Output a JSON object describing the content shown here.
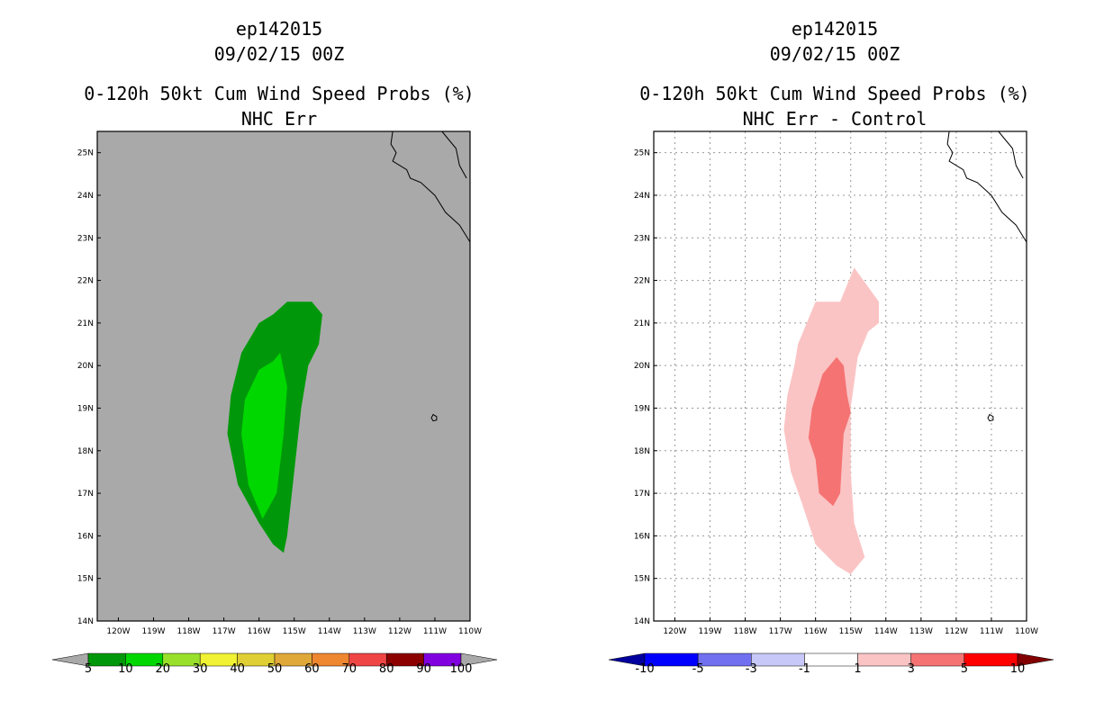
{
  "chart_data": [
    {
      "type": "heatmap",
      "storm": "ep142015",
      "date": "09/02/15 00Z",
      "title": "0-120h 50kt Cum Wind Speed Probs (%)",
      "subtitle": "NHC Err",
      "xlim": [
        -120.6,
        -110
      ],
      "ylim": [
        14,
        25.5
      ],
      "xticks": [
        "120W",
        "119W",
        "118W",
        "117W",
        "116W",
        "115W",
        "114W",
        "113W",
        "112W",
        "111W",
        "110W"
      ],
      "yticks": [
        "14N",
        "15N",
        "16N",
        "17N",
        "18N",
        "19N",
        "20N",
        "21N",
        "22N",
        "23N",
        "24N",
        "25N"
      ],
      "grid": false,
      "background": "#a9a9a9",
      "colorbar": {
        "labels": [
          "5",
          "10",
          "20",
          "30",
          "40",
          "50",
          "60",
          "70",
          "80",
          "90",
          "100"
        ],
        "colors": [
          "#00980a",
          "#00d700",
          "#99e02b",
          "#f0f233",
          "#e0cf34",
          "#e0a838",
          "#ef8630",
          "#f04545",
          "#8c0000",
          "#8100e0"
        ],
        "end_colors": [
          "#a9a9a9",
          "#a9a9a9"
        ]
      },
      "contours": [
        {
          "level": "5-10",
          "color": "#00980a",
          "polygon": [
            [
              -115.6,
              21.2
            ],
            [
              -115.2,
              21.5
            ],
            [
              -114.5,
              21.5
            ],
            [
              -114.2,
              21.2
            ],
            [
              -114.3,
              20.5
            ],
            [
              -114.6,
              20
            ],
            [
              -114.8,
              19
            ],
            [
              -115,
              17.5
            ],
            [
              -115.2,
              16
            ],
            [
              -115.3,
              15.6
            ],
            [
              -115.6,
              15.8
            ],
            [
              -116,
              16.3
            ],
            [
              -116.6,
              17.2
            ],
            [
              -116.9,
              18.4
            ],
            [
              -116.8,
              19.3
            ],
            [
              -116.5,
              20.3
            ],
            [
              -116,
              21
            ]
          ]
        },
        {
          "level": "10-20",
          "color": "#00d700",
          "polygon": [
            [
              -115.4,
              20.3
            ],
            [
              -115.6,
              20.1
            ],
            [
              -116,
              19.9
            ],
            [
              -116.4,
              19.2
            ],
            [
              -116.5,
              18.4
            ],
            [
              -116.3,
              17.2
            ],
            [
              -115.9,
              16.4
            ],
            [
              -115.5,
              17
            ],
            [
              -115.3,
              18.4
            ],
            [
              -115.2,
              19.5
            ]
          ]
        }
      ],
      "features": [
        "coastline-baja",
        "island-socorro"
      ]
    },
    {
      "type": "heatmap",
      "storm": "ep142015",
      "date": "09/02/15 00Z",
      "title": "0-120h 50kt Cum Wind Speed Probs (%)",
      "subtitle": "NHC Err - Control",
      "xlim": [
        -120.6,
        -110
      ],
      "ylim": [
        14,
        25.5
      ],
      "xticks": [
        "120W",
        "119W",
        "118W",
        "117W",
        "116W",
        "115W",
        "114W",
        "113W",
        "112W",
        "111W",
        "110W"
      ],
      "yticks": [
        "14N",
        "15N",
        "16N",
        "17N",
        "18N",
        "19N",
        "20N",
        "21N",
        "22N",
        "23N",
        "24N",
        "25N"
      ],
      "grid": true,
      "background": "#ffffff",
      "colorbar": {
        "labels": [
          "-10",
          "-5",
          "-3",
          "-1",
          "1",
          "3",
          "5",
          "10"
        ],
        "colors": [
          "#0000ff",
          "#7070f0",
          "#c8c8f8",
          "#ffffff",
          "#fbc4c4",
          "#f57373",
          "#ff0000"
        ],
        "end_colors": [
          "#00009e",
          "#820000"
        ]
      },
      "contours": [
        {
          "level": "1-3",
          "color": "#fbc4c4",
          "polygon": [
            [
              -116,
              21.5
            ],
            [
              -115.3,
              21.5
            ],
            [
              -114.9,
              22.3
            ],
            [
              -114.2,
              21.5
            ],
            [
              -114.2,
              21
            ],
            [
              -114.5,
              20.8
            ],
            [
              -114.8,
              20.2
            ],
            [
              -115,
              19
            ],
            [
              -115,
              17.5
            ],
            [
              -114.9,
              16.3
            ],
            [
              -114.6,
              15.5
            ],
            [
              -115,
              15.1
            ],
            [
              -115.4,
              15.3
            ],
            [
              -116,
              15.8
            ],
            [
              -116.4,
              16.8
            ],
            [
              -116.7,
              17.5
            ],
            [
              -116.9,
              18.5
            ],
            [
              -116.8,
              19.3
            ],
            [
              -116.6,
              20
            ],
            [
              -116.5,
              20.5
            ]
          ]
        },
        {
          "level": "3-5",
          "color": "#f57373",
          "polygon": [
            [
              -115.8,
              19.8
            ],
            [
              -115.4,
              20.2
            ],
            [
              -115.2,
              20
            ],
            [
              -115.1,
              19.3
            ],
            [
              -115,
              18.9
            ],
            [
              -115.2,
              18.4
            ],
            [
              -115.3,
              17
            ],
            [
              -115.5,
              16.7
            ],
            [
              -115.9,
              17
            ],
            [
              -116,
              17.8
            ],
            [
              -116.2,
              18.3
            ],
            [
              -116.1,
              19
            ]
          ]
        }
      ],
      "features": [
        "coastline-baja",
        "island-socorro"
      ]
    }
  ]
}
